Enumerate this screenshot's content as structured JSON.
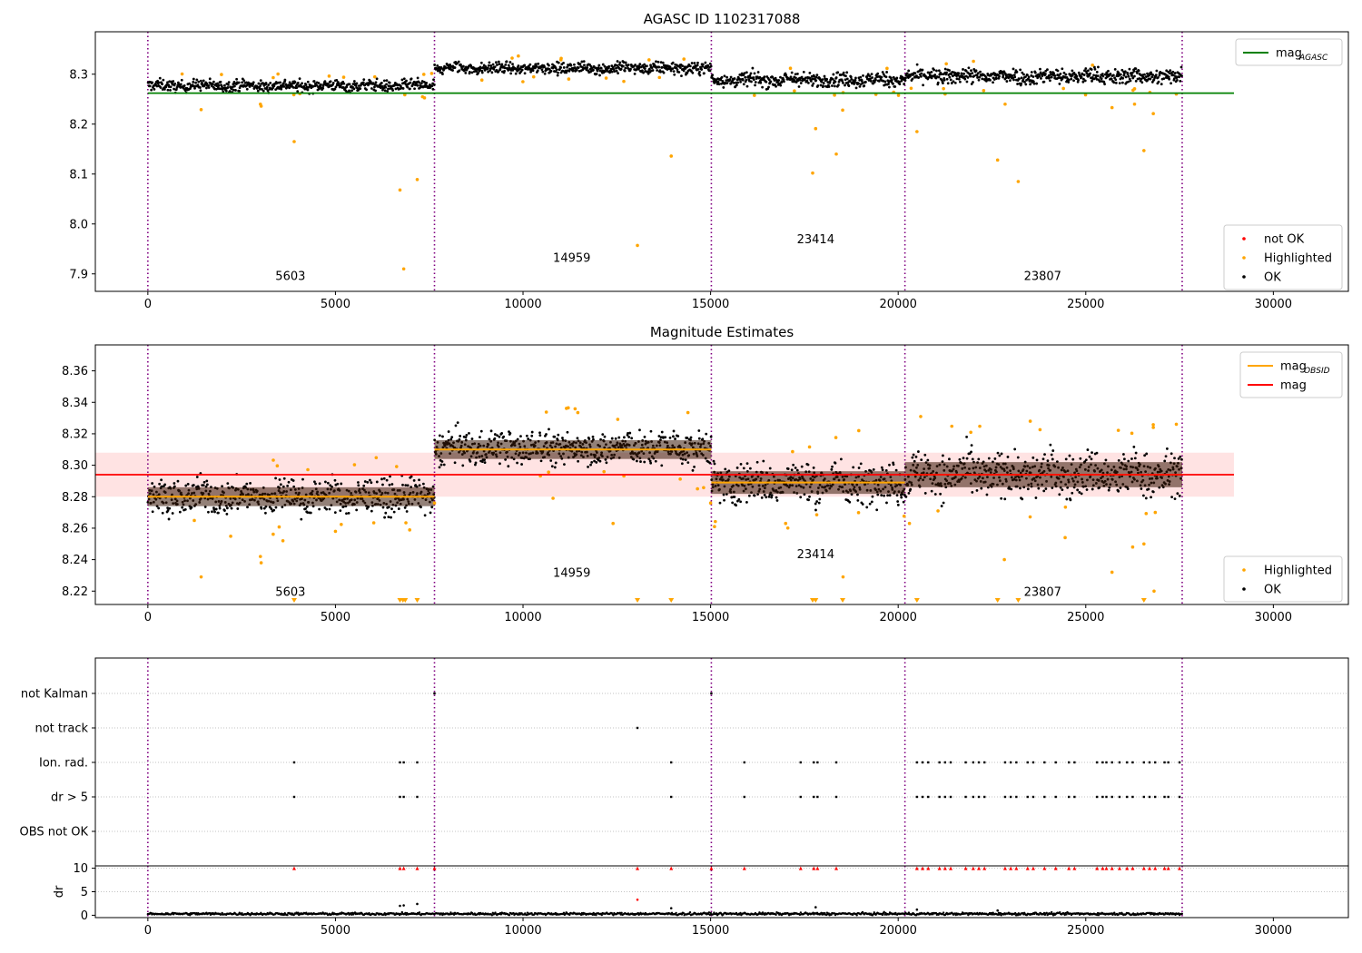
{
  "colors": {
    "ok": "#000000",
    "highlighted": "#ffa500",
    "not_ok": "#ff0000",
    "agasc_line": "#008000",
    "obsid_line": "#ffa500",
    "mag_line": "#ff0000",
    "mag_band": "#ffc0c0",
    "obsid_boundary": "#800080",
    "grid": "#b0b0b0"
  },
  "chart_data": [
    {
      "type": "scatter",
      "title": "AGASC ID 1102317088",
      "xlim": [
        -1400,
        32000
      ],
      "ylim": [
        7.865,
        8.385
      ],
      "xticks": [
        0,
        5000,
        10000,
        15000,
        20000,
        25000,
        30000
      ],
      "xtick_labels": [
        "0",
        "5000",
        "10000",
        "15000",
        "20000",
        "25000",
        "30000"
      ],
      "yticks": [
        7.9,
        8.0,
        8.1,
        8.2,
        8.3
      ],
      "ytick_labels": [
        "7.9",
        "8.0",
        "8.1",
        "8.2",
        "8.3"
      ],
      "obsid_boundaries": [
        0,
        7640,
        15020,
        20180,
        27570
      ],
      "obsid_labels": [
        {
          "text": "5603",
          "x": 3800,
          "y": 7.888
        },
        {
          "text": "14959",
          "x": 11300,
          "y": 7.924
        },
        {
          "text": "23414",
          "x": 17800,
          "y": 7.961
        },
        {
          "text": "23807",
          "x": 23850,
          "y": 7.888
        }
      ],
      "segments": [
        {
          "start": 0,
          "end": 7640,
          "center": 8.277,
          "spread": 0.008
        },
        {
          "start": 7640,
          "end": 15020,
          "center": 8.312,
          "spread": 0.008
        },
        {
          "start": 15020,
          "end": 20180,
          "center": 8.289,
          "spread": 0.01
        },
        {
          "start": 20180,
          "end": 27570,
          "center": 8.296,
          "spread": 0.011
        }
      ],
      "reference_lines": [
        {
          "name": "mag_AGASC",
          "y": 8.262,
          "x_range": [
            0,
            28950
          ]
        }
      ],
      "highlighted_outliers": [
        {
          "x": 1420,
          "y": 8.229
        },
        {
          "x": 3000,
          "y": 8.24
        },
        {
          "x": 3020,
          "y": 8.236
        },
        {
          "x": 3900,
          "y": 8.165
        },
        {
          "x": 6720,
          "y": 8.068
        },
        {
          "x": 6820,
          "y": 7.91
        },
        {
          "x": 7180,
          "y": 8.089
        },
        {
          "x": 13050,
          "y": 7.957
        },
        {
          "x": 13950,
          "y": 8.136
        },
        {
          "x": 17720,
          "y": 8.102
        },
        {
          "x": 17800,
          "y": 8.191
        },
        {
          "x": 18350,
          "y": 8.14
        },
        {
          "x": 18520,
          "y": 8.228
        },
        {
          "x": 20500,
          "y": 8.185
        },
        {
          "x": 22650,
          "y": 8.128
        },
        {
          "x": 22850,
          "y": 8.24
        },
        {
          "x": 23200,
          "y": 8.085
        },
        {
          "x": 25700,
          "y": 8.233
        },
        {
          "x": 26300,
          "y": 8.24
        },
        {
          "x": 26550,
          "y": 8.147
        },
        {
          "x": 26800,
          "y": 8.221
        }
      ],
      "legends": [
        {
          "position": "top-right",
          "entries": [
            {
              "label": "mag",
              "sub": "AGASC",
              "kind": "line",
              "color": "#008000"
            }
          ]
        },
        {
          "position": "bottom-right",
          "entries": [
            {
              "label": "not OK",
              "kind": "dot",
              "color": "#ff0000"
            },
            {
              "label": "Highlighted",
              "kind": "dot",
              "color": "#ffa500"
            },
            {
              "label": "OK",
              "kind": "dot",
              "color": "#000000"
            }
          ]
        }
      ]
    },
    {
      "type": "scatter",
      "title": "Magnitude Estimates",
      "xlim": [
        -1400,
        32000
      ],
      "ylim": [
        8.2115,
        8.3765
      ],
      "xticks": [
        0,
        5000,
        10000,
        15000,
        20000,
        25000,
        30000
      ],
      "xtick_labels": [
        "0",
        "5000",
        "10000",
        "15000",
        "20000",
        "25000",
        "30000"
      ],
      "yticks": [
        8.22,
        8.24,
        8.26,
        8.28,
        8.3,
        8.32,
        8.34,
        8.36
      ],
      "ytick_labels": [
        "8.22",
        "8.24",
        "8.26",
        "8.28",
        "8.30",
        "8.32",
        "8.34",
        "8.36"
      ],
      "obsid_boundaries": [
        0,
        7640,
        15020,
        20180,
        27570
      ],
      "obsid_labels": [
        {
          "text": "5603",
          "x": 3800,
          "y": 8.217
        },
        {
          "text": "14959",
          "x": 11300,
          "y": 8.229
        },
        {
          "text": "23414",
          "x": 17800,
          "y": 8.241
        },
        {
          "text": "23807",
          "x": 23850,
          "y": 8.217
        }
      ],
      "segments": [
        {
          "start": 0,
          "end": 7640,
          "center": 8.28,
          "spread": 0.0075,
          "obsid_mag": 8.28
        },
        {
          "start": 7640,
          "end": 15020,
          "center": 8.311,
          "spread": 0.0075,
          "obsid_mag": 8.31
        },
        {
          "start": 15020,
          "end": 20180,
          "center": 8.289,
          "spread": 0.009,
          "obsid_mag": 8.289
        },
        {
          "start": 20180,
          "end": 27570,
          "center": 8.294,
          "spread": 0.01,
          "obsid_mag": 8.294
        }
      ],
      "reference_lines": [
        {
          "name": "mag",
          "y": 8.294,
          "x_range": [
            -1400,
            28950
          ]
        }
      ],
      "mag_band": {
        "low": 8.28,
        "high": 8.308,
        "x_range": [
          -1400,
          28950
        ]
      },
      "clipped_markers_x": [
        3900,
        6720,
        6800,
        6860,
        7180,
        13050,
        13950,
        17720,
        17800,
        18520,
        20500,
        22650,
        23200,
        26550
      ],
      "highlighted_outliers": [
        {
          "x": 1420,
          "y": 8.229
        },
        {
          "x": 3000,
          "y": 8.242
        },
        {
          "x": 3020,
          "y": 8.238
        },
        {
          "x": 3600,
          "y": 8.252
        },
        {
          "x": 5000,
          "y": 8.258
        },
        {
          "x": 7640,
          "y": 8.276
        },
        {
          "x": 10800,
          "y": 8.279
        },
        {
          "x": 12400,
          "y": 8.263
        },
        {
          "x": 14650,
          "y": 8.285
        },
        {
          "x": 15000,
          "y": 8.276
        },
        {
          "x": 17000,
          "y": 8.263
        },
        {
          "x": 18530,
          "y": 8.229
        },
        {
          "x": 20300,
          "y": 8.263
        },
        {
          "x": 24450,
          "y": 8.254
        },
        {
          "x": 22830,
          "y": 8.24
        },
        {
          "x": 25700,
          "y": 8.232
        },
        {
          "x": 26250,
          "y": 8.248
        },
        {
          "x": 26550,
          "y": 8.25
        },
        {
          "x": 26820,
          "y": 8.22
        },
        {
          "x": 20600,
          "y": 8.331
        },
        {
          "x": 23520,
          "y": 8.328
        },
        {
          "x": 18950,
          "y": 8.322
        },
        {
          "x": 26800,
          "y": 8.324
        }
      ],
      "legends": [
        {
          "position": "top-right",
          "entries": [
            {
              "label": "mag",
              "sub": "OBSID",
              "kind": "line",
              "color": "#ffa500"
            },
            {
              "label": "mag",
              "kind": "line",
              "color": "#ff0000"
            }
          ]
        },
        {
          "position": "bottom-right",
          "entries": [
            {
              "label": "Highlighted",
              "kind": "dot",
              "color": "#ffa500"
            },
            {
              "label": "OK",
              "kind": "dot",
              "color": "#000000"
            }
          ]
        }
      ]
    },
    {
      "type": "scatter",
      "title": "",
      "xlim": [
        -1400,
        32000
      ],
      "categories": [
        "not Kalman",
        "not track",
        "Ion. rad.",
        "dr > 5",
        "OBS not OK"
      ],
      "flag_points": {
        "not Kalman": [
          7640,
          15020
        ],
        "not track": [
          13050
        ],
        "Ion. rad.": [
          3900,
          6720,
          6820,
          7180,
          13950,
          15900,
          17400,
          17750,
          17850,
          18350,
          20500,
          20650,
          20800,
          21100,
          21250,
          21400,
          21800,
          22000,
          22150,
          22300,
          22850,
          23000,
          23150,
          23450,
          23600,
          23900,
          24200,
          24550,
          24700,
          25300,
          25450,
          25550,
          25700,
          25900,
          26100,
          26250,
          26550,
          26700,
          26850,
          27100,
          27200,
          27500
        ],
        "dr > 5": [
          3900,
          6720,
          6820,
          7180,
          13950,
          15900,
          17400,
          17750,
          17850,
          18350,
          20500,
          20650,
          20800,
          21100,
          21250,
          21400,
          21800,
          22000,
          22150,
          22300,
          22850,
          23000,
          23150,
          23450,
          23600,
          23900,
          24200,
          24550,
          24700,
          25300,
          25450,
          25550,
          25700,
          25900,
          26100,
          26250,
          26550,
          26700,
          26850,
          27100,
          27200,
          27500
        ],
        "OBS not OK": []
      },
      "obsid_boundaries": [
        0,
        7640,
        15020,
        20180,
        27570
      ]
    },
    {
      "type": "scatter",
      "title": "",
      "ylabel": "dr",
      "xlim": [
        -1400,
        32000
      ],
      "ylim": [
        -0.5,
        10.5
      ],
      "xticks": [
        0,
        5000,
        10000,
        15000,
        20000,
        25000,
        30000
      ],
      "xtick_labels": [
        "0",
        "5000",
        "10000",
        "15000",
        "20000",
        "25000",
        "30000"
      ],
      "yticks": [
        0,
        5,
        10
      ],
      "ytick_labels": [
        "0",
        "5",
        "10"
      ],
      "dr_baseline": 0.3,
      "dr_spikes": [
        {
          "x": 6720,
          "y": 2.0
        },
        {
          "x": 6820,
          "y": 2.1
        },
        {
          "x": 7180,
          "y": 2.4
        },
        {
          "x": 13050,
          "y": 3.3
        },
        {
          "x": 13950,
          "y": 1.5
        },
        {
          "x": 17800,
          "y": 1.7
        },
        {
          "x": 20500,
          "y": 1.2
        },
        {
          "x": 22650,
          "y": 1.0
        }
      ],
      "clipped_x": [
        3900,
        6720,
        6820,
        7180,
        7640,
        13050,
        13950,
        15020,
        15900,
        17400,
        17750,
        17850,
        18350,
        20500,
        20650,
        20800,
        21100,
        21250,
        21400,
        21800,
        22000,
        22150,
        22300,
        22850,
        23000,
        23150,
        23450,
        23600,
        23900,
        24200,
        24550,
        24700,
        25300,
        25450,
        25550,
        25700,
        25900,
        26100,
        26250,
        26550,
        26700,
        26850,
        27100,
        27200,
        27500
      ],
      "obsid_boundaries": [
        0,
        7640,
        15020,
        20180,
        27570
      ]
    }
  ]
}
